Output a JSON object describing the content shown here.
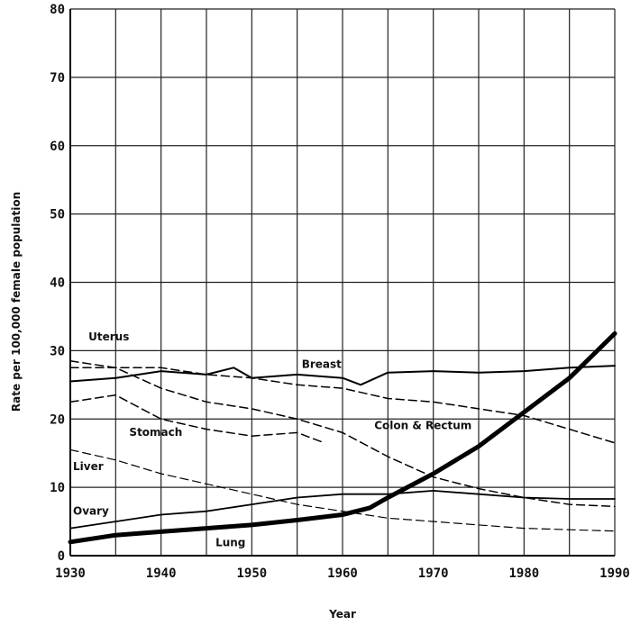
{
  "chart_data": {
    "type": "line",
    "title": "",
    "xlabel": "Year",
    "ylabel": "Rate per 100,000 female population",
    "xlim": [
      1930,
      1990
    ],
    "ylim": [
      0,
      80
    ],
    "x_ticks": [
      1930,
      1940,
      1950,
      1960,
      1970,
      1980,
      1990
    ],
    "x_tick_labels": [
      "1930",
      "1940",
      "1950",
      "1960",
      "1970",
      "1980",
      "1990"
    ],
    "y_ticks": [
      0,
      10,
      20,
      30,
      40,
      50,
      60,
      70,
      80
    ],
    "y_tick_labels": [
      "0",
      "10",
      "20",
      "30",
      "40",
      "50",
      "60",
      "70",
      "80"
    ],
    "grid": true,
    "series": [
      {
        "name": "Uterus",
        "style": "dashed",
        "width": 1.5,
        "x": [
          1930,
          1935,
          1940,
          1945,
          1950,
          1955,
          1960,
          1965,
          1970,
          1975,
          1980,
          1985,
          1990
        ],
        "y": [
          28.5,
          27.5,
          24.5,
          22.5,
          21.5,
          20,
          18,
          14.5,
          11.5,
          9.8,
          8.5,
          7.5,
          7.2
        ]
      },
      {
        "name": "Breast",
        "style": "solid",
        "width": 2,
        "x": [
          1930,
          1935,
          1940,
          1945,
          1948,
          1950,
          1955,
          1960,
          1962,
          1965,
          1970,
          1975,
          1980,
          1985,
          1990
        ],
        "y": [
          25.5,
          26,
          27,
          26.5,
          27.5,
          26,
          26.5,
          26,
          25,
          26.8,
          27,
          26.8,
          27,
          27.5,
          27.8
        ]
      },
      {
        "name": "Colon & Rectum",
        "style": "dashed",
        "width": 1.5,
        "x": [
          1930,
          1935,
          1940,
          1945,
          1950,
          1955,
          1960,
          1965,
          1970,
          1975,
          1980,
          1985,
          1990
        ],
        "y": [
          27.5,
          27.5,
          27.5,
          26.5,
          26,
          25,
          24.5,
          23,
          22.5,
          21.5,
          20.5,
          18.5,
          16.5
        ]
      },
      {
        "name": "Stomach",
        "style": "dashed",
        "width": 1.5,
        "x": [
          1930,
          1935,
          1940,
          1945,
          1950,
          1955,
          1958
        ],
        "y": [
          22.5,
          23.5,
          20,
          18.5,
          17.5,
          18,
          16.5
        ]
      },
      {
        "name": "Liver",
        "style": "dashed",
        "width": 1.2,
        "x": [
          1930,
          1935,
          1940,
          1945,
          1950,
          1955,
          1960,
          1965,
          1970,
          1975,
          1980,
          1985,
          1990
        ],
        "y": [
          15.5,
          14,
          12,
          10.5,
          9,
          7.5,
          6.5,
          5.5,
          5,
          4.5,
          4,
          3.8,
          3.6
        ]
      },
      {
        "name": "Ovary",
        "style": "solid",
        "width": 1.8,
        "x": [
          1930,
          1935,
          1940,
          1945,
          1950,
          1955,
          1960,
          1965,
          1970,
          1975,
          1980,
          1985,
          1990
        ],
        "y": [
          4,
          5,
          6,
          6.5,
          7.5,
          8.5,
          9,
          9,
          9.5,
          9,
          8.5,
          8.3,
          8.3
        ]
      },
      {
        "name": "Lung",
        "style": "solid",
        "width": 5,
        "x": [
          1930,
          1935,
          1940,
          1945,
          1950,
          1955,
          1960,
          1963,
          1965,
          1970,
          1975,
          1980,
          1985,
          1990
        ],
        "y": [
          2,
          3,
          3.5,
          4,
          4.5,
          5.2,
          6,
          7,
          8.5,
          12,
          16,
          21,
          26,
          32.5
        ]
      }
    ],
    "annotations": [
      {
        "text": "Uterus",
        "series": "Uterus"
      },
      {
        "text": "Breast",
        "series": "Breast"
      },
      {
        "text": "Colon & Rectum",
        "series": "Colon & Rectum"
      },
      {
        "text": "Stomach",
        "series": "Stomach"
      },
      {
        "text": "Liver",
        "series": "Liver"
      },
      {
        "text": "Ovary",
        "series": "Ovary"
      },
      {
        "text": "Lung",
        "series": "Lung"
      }
    ]
  }
}
